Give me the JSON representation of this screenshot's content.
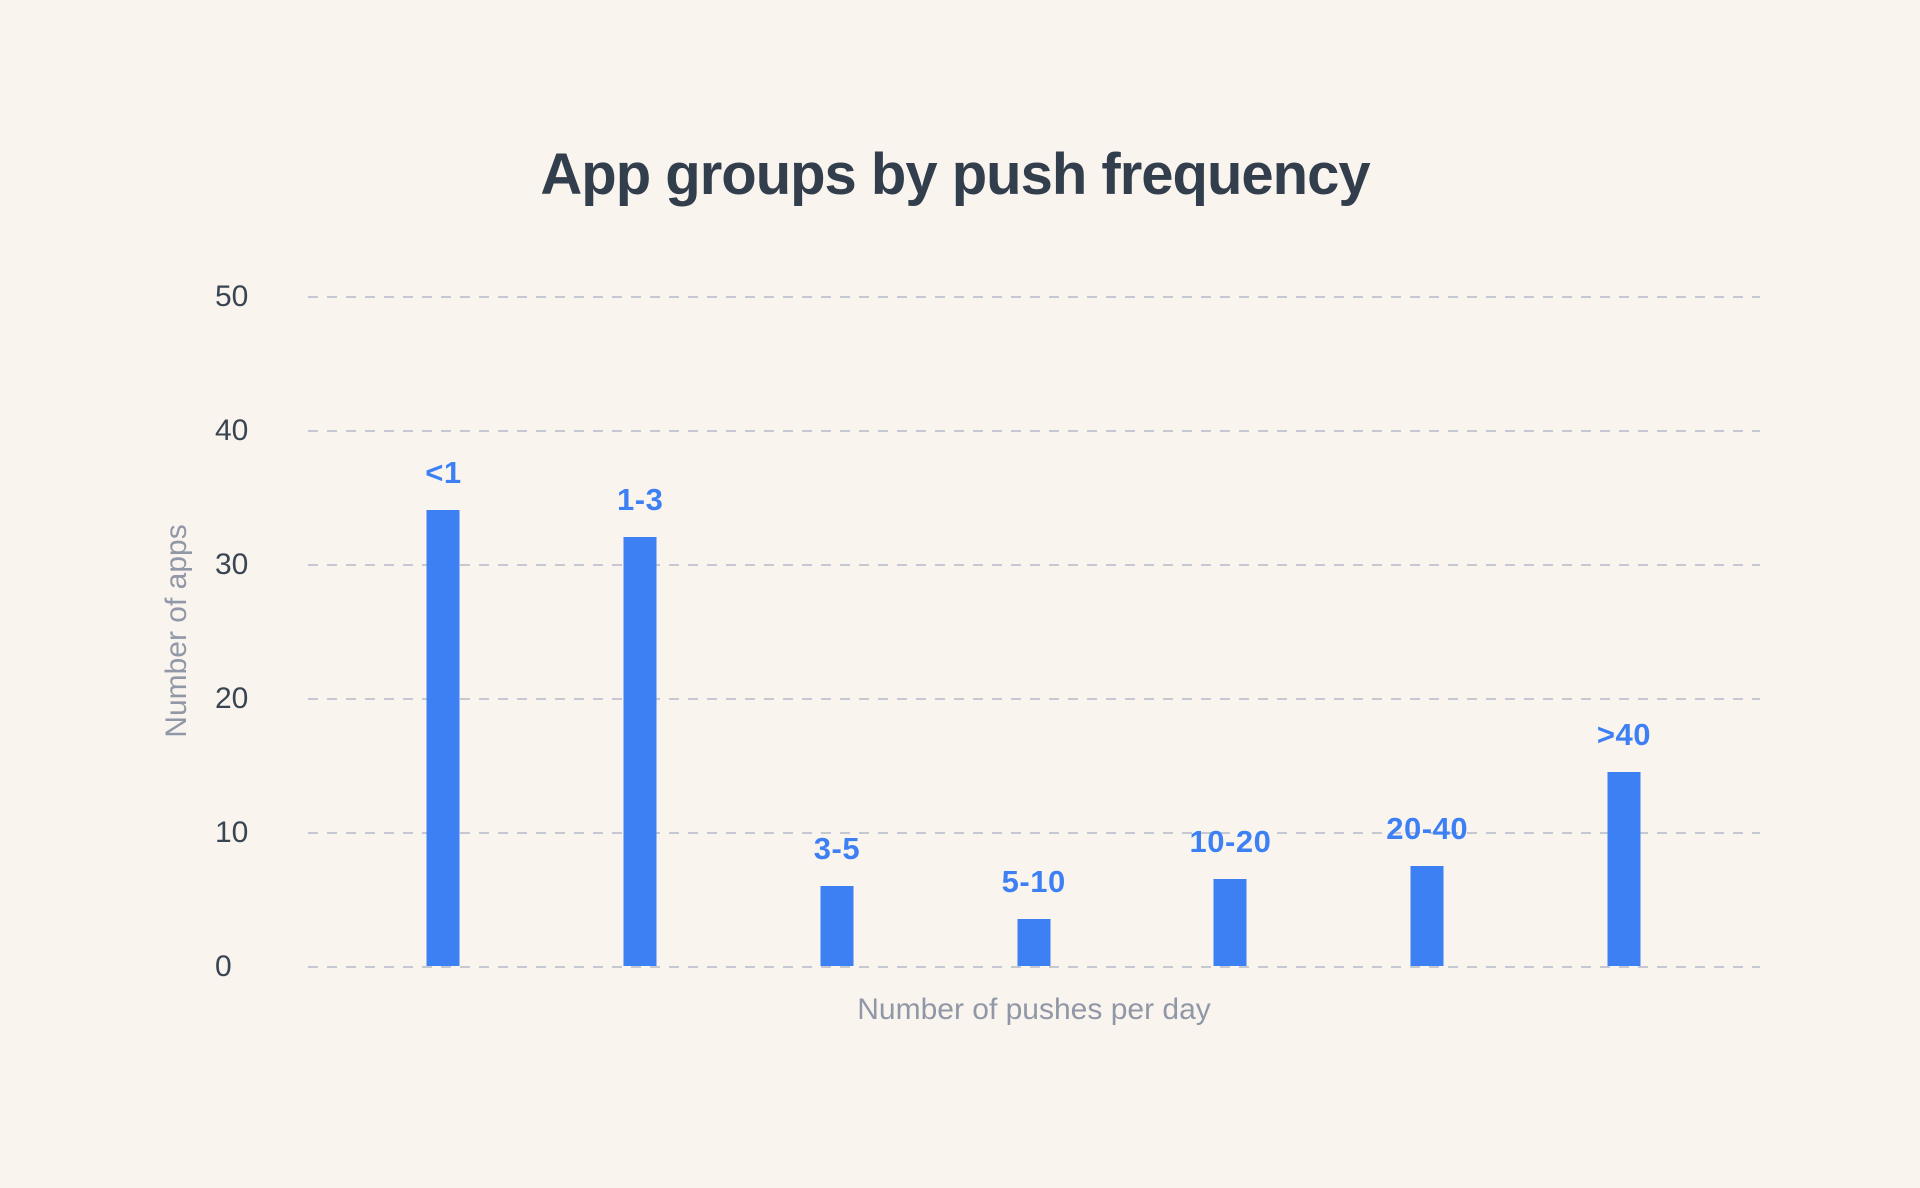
{
  "chart_data": {
    "type": "bar",
    "title": "App groups by push frequency",
    "categories": [
      "<1",
      "1-3",
      "3-5",
      "5-10",
      "10-20",
      "20-40",
      ">40"
    ],
    "values": [
      34,
      32,
      6,
      3.5,
      6.5,
      7.5,
      14.5
    ],
    "xlabel": "Number of pushes per day",
    "ylabel": "Number of apps",
    "ylim": [
      0,
      50
    ],
    "yticks": [
      0,
      10,
      20,
      30,
      40,
      50
    ],
    "grid": "horizontal-dashed",
    "legend": "none",
    "bar_labels_position": "above-bars"
  },
  "colors": {
    "background": "#faf4ef",
    "bar": "#3d80f4",
    "bar_label": "#3d80f4",
    "title_text": "#333e4c",
    "tick_label": "#3a4553",
    "axis_label": "#9097a6",
    "gridline": "#c5c8d0"
  }
}
